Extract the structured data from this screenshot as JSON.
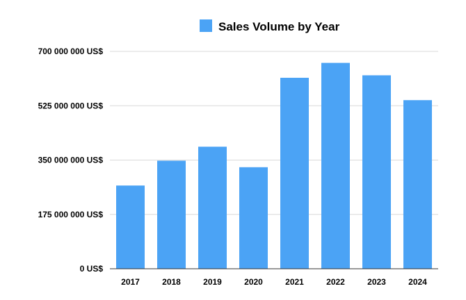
{
  "chart_data": {
    "type": "bar",
    "categories": [
      "2017",
      "2018",
      "2019",
      "2020",
      "2021",
      "2022",
      "2023",
      "2024"
    ],
    "series": [
      {
        "name": "Sales Volume by Year",
        "values": [
          268000000,
          348000000,
          393000000,
          327000000,
          615000000,
          663000000,
          623000000,
          543000000
        ]
      }
    ],
    "title": "",
    "xlabel": "",
    "ylabel": "",
    "ylim": [
      0,
      700000000
    ],
    "yticks": [
      0,
      175000000,
      350000000,
      525000000,
      700000000
    ],
    "ytick_labels": [
      "0 US$",
      "175 000 000 US$",
      "350 000 000 US$",
      "525 000 000 US$",
      "700 000 000 US$"
    ],
    "grid": true,
    "legend_position": "top",
    "bar_color": "#4ba3f5",
    "grid_color": "#d9d9d9",
    "axis_color": "#333333"
  }
}
